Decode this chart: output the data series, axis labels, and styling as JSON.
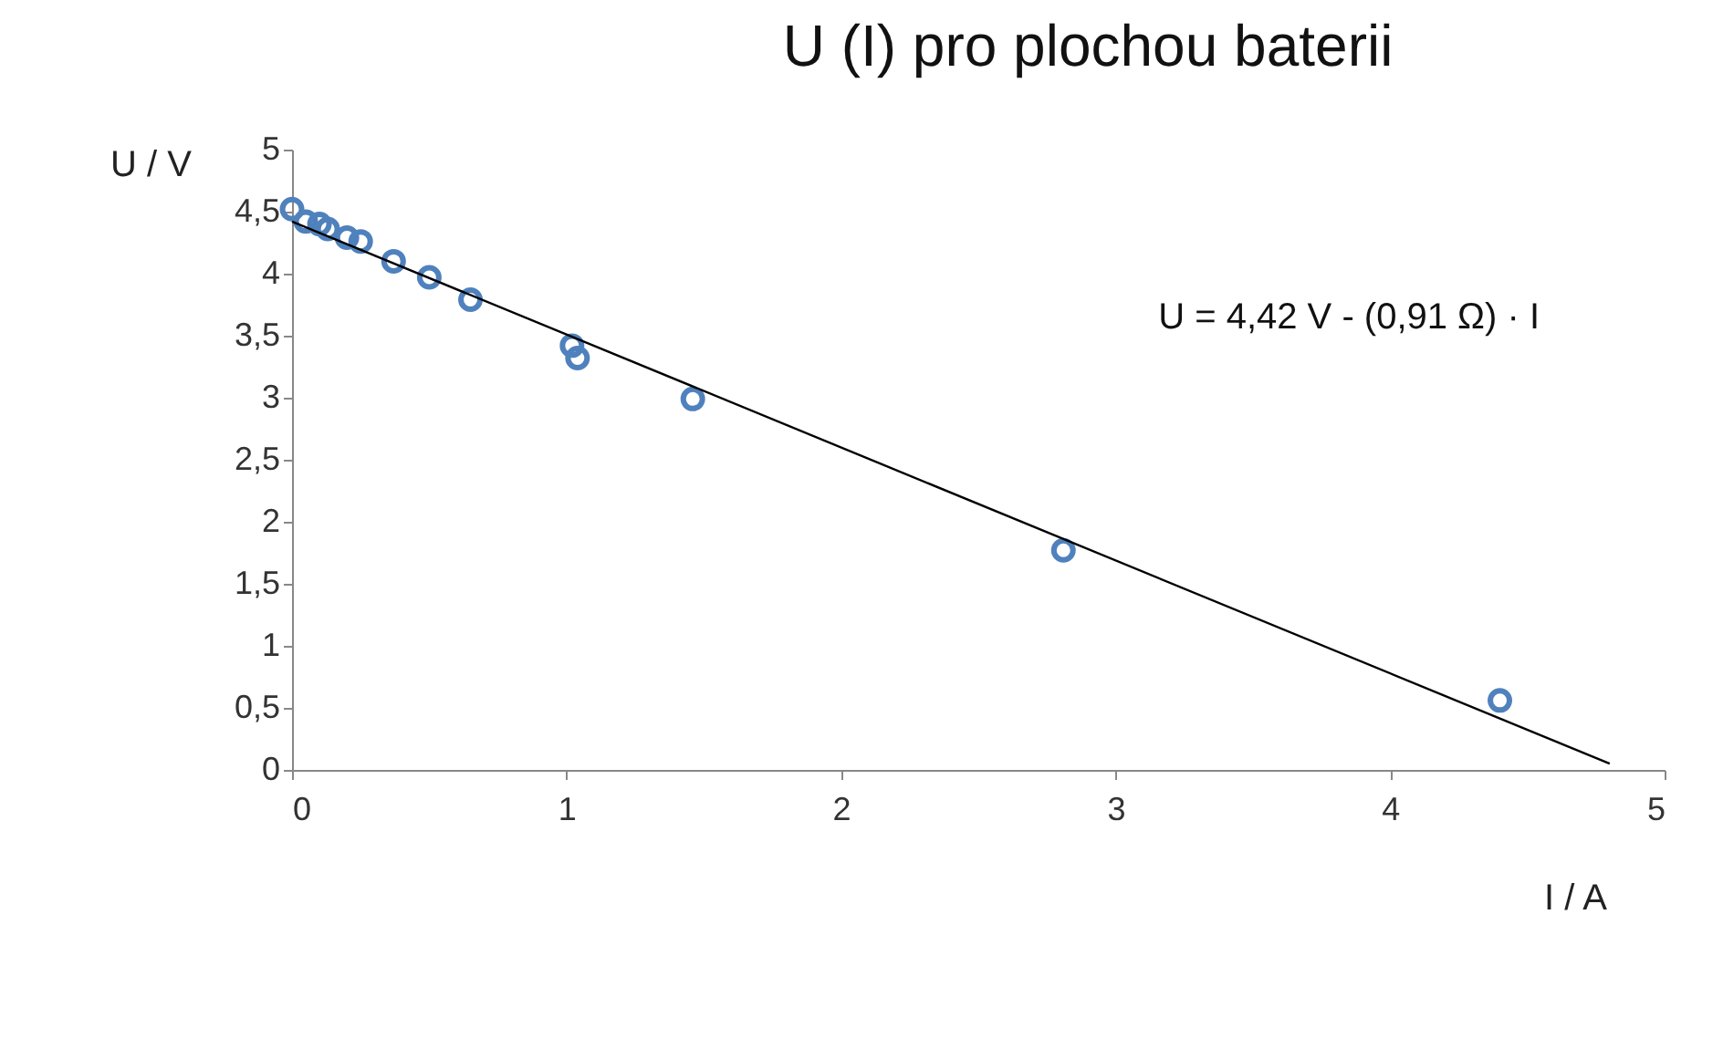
{
  "chart_data": {
    "type": "scatter",
    "title": "U (I) pro plochou baterii",
    "xlabel": "I / A",
    "ylabel": "U / V",
    "annotations": [
      "U = 4,42 V  - (0,91 Ω) · I"
    ],
    "xlim": [
      0,
      5
    ],
    "xticks": [
      0,
      1,
      2,
      3,
      4,
      5
    ],
    "ylim": [
      0,
      5
    ],
    "yticks": [
      0,
      {
        "value": 0.5,
        "label": "0,5"
      },
      1,
      {
        "value": 1.5,
        "label": "1,5"
      },
      2,
      {
        "value": 2.5,
        "label": "2,5"
      },
      3,
      {
        "value": 3.5,
        "label": "3,5"
      },
      4,
      {
        "value": 4.5,
        "label": "4,5"
      },
      5
    ],
    "grid": false,
    "marker": "circle",
    "series": [
      {
        "color": "#4f81bd",
        "x": [
          0,
          0.05,
          0.1,
          0.13,
          0.2,
          0.25,
          0.37,
          0.5,
          0.65,
          1.02,
          1.04,
          1.46,
          2.81,
          4.4
        ],
        "values": [
          4.52,
          4.42,
          4.4,
          4.36,
          4.29,
          4.26,
          4.1,
          3.97,
          3.79,
          3.42,
          3.32,
          2.99,
          1.77,
          0.56
        ]
      },
      {
        "type": "line",
        "color": "#000000",
        "marker": "none",
        "x": [
          0,
          4.8
        ],
        "values": [
          4.42,
          0.05
        ]
      }
    ]
  }
}
